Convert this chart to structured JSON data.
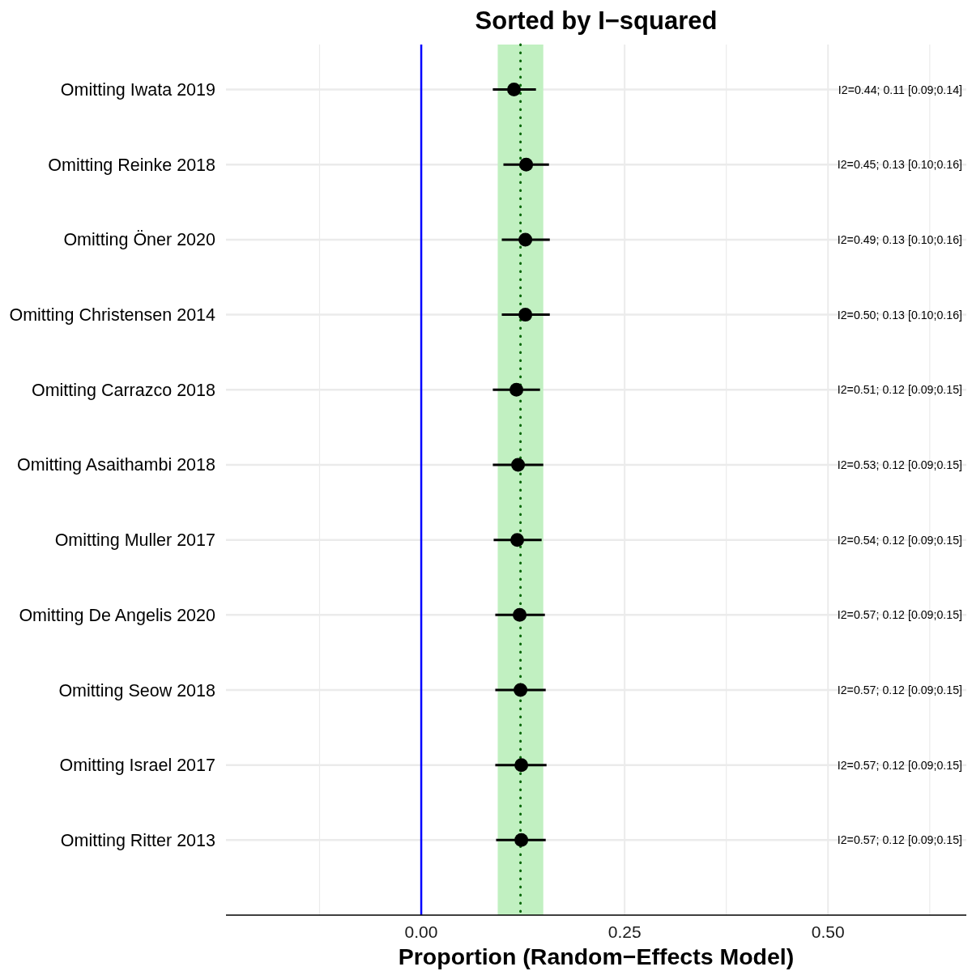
{
  "chart_data": {
    "type": "scatter",
    "title": "Sorted by I−squared",
    "xlabel": "Proportion (Random−Effects Model)",
    "orientation": "horizontal",
    "categories": [
      "Omitting Iwata 2019",
      "Omitting Reinke 2018",
      "Omitting Öner 2020",
      "Omitting Christensen 2014",
      "Omitting Carrazco 2018",
      "Omitting Asaithambi 2018",
      "Omitting Muller 2017",
      "Omitting De Angelis 2020",
      "Omitting Seow 2018",
      "Omitting Israel 2017",
      "Omitting Ritter 2013"
    ],
    "values": [
      0.114,
      0.129,
      0.128,
      0.128,
      0.117,
      0.119,
      0.118,
      0.121,
      0.122,
      0.123,
      0.123
    ],
    "errors": [
      [
        0.088,
        0.141
      ],
      [
        0.101,
        0.157
      ],
      [
        0.099,
        0.158
      ],
      [
        0.099,
        0.158
      ],
      [
        0.088,
        0.146
      ],
      [
        0.088,
        0.15
      ],
      [
        0.089,
        0.148
      ],
      [
        0.091,
        0.152
      ],
      [
        0.091,
        0.153
      ],
      [
        0.091,
        0.154
      ],
      [
        0.092,
        0.153
      ]
    ],
    "annotations": [
      "I2=0.44; 0.11 [0.09;0.14]",
      "I2=0.45; 0.13 [0.10;0.16]",
      "I2=0.49; 0.13 [0.10;0.16]",
      "I2=0.50; 0.13 [0.10;0.16]",
      "I2=0.51; 0.12 [0.09;0.15]",
      "I2=0.53; 0.12 [0.09;0.15]",
      "I2=0.54; 0.12 [0.09;0.15]",
      "I2=0.57; 0.12 [0.09;0.15]",
      "I2=0.57; 0.12 [0.09;0.15]",
      "I2=0.57; 0.12 [0.09;0.15]",
      "I2=0.57; 0.12 [0.09;0.15]"
    ],
    "color": "#000000",
    "marker": "circle",
    "xlim": [
      -0.24,
      0.67
    ],
    "xticks": [
      {
        "value": -0.125,
        "label": null
      },
      {
        "value": 0,
        "label": "0.00"
      },
      {
        "value": 0.125,
        "label": null
      },
      {
        "value": 0.25,
        "label": "0.25"
      },
      {
        "value": 0.375,
        "label": null
      },
      {
        "value": 0.5,
        "label": "0.50"
      },
      {
        "value": 0.625,
        "label": null
      }
    ],
    "grid": true,
    "ref_lines": [
      {
        "axis": "x",
        "value": 0,
        "color": "#0000ff",
        "line_style": "solid"
      },
      {
        "axis": "x",
        "value": 0.122,
        "color": "#006400",
        "line_style": "dotted"
      }
    ],
    "bands": [
      {
        "axis": "x",
        "from": 0.094,
        "to": 0.15,
        "color": "#c1f0c1"
      }
    ]
  }
}
